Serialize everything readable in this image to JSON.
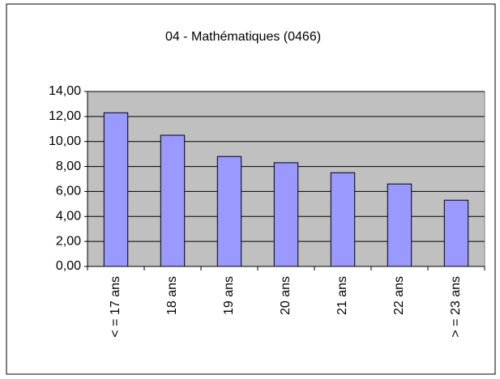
{
  "chart_data": {
    "type": "bar",
    "title": "04 - Mathématiques (0466)",
    "categories": [
      "< = 17 ans",
      "18 ans",
      "19 ans",
      "20 ans",
      "21 ans",
      "22 ans",
      "> = 23 ans"
    ],
    "values": [
      12.3,
      10.5,
      8.8,
      8.3,
      7.5,
      6.6,
      5.3
    ],
    "color": "#9999ff",
    "ylim": [
      0,
      14
    ],
    "yticks": [
      {
        "value": 0,
        "label": "0,00"
      },
      {
        "value": 2,
        "label": "2,00"
      },
      {
        "value": 4,
        "label": "4,00"
      },
      {
        "value": 6,
        "label": "6,00"
      },
      {
        "value": 8,
        "label": "8,00"
      },
      {
        "value": 10,
        "label": "10,00"
      },
      {
        "value": 12,
        "label": "12,00"
      },
      {
        "value": 14,
        "label": "14,00"
      }
    ],
    "grid": true
  }
}
